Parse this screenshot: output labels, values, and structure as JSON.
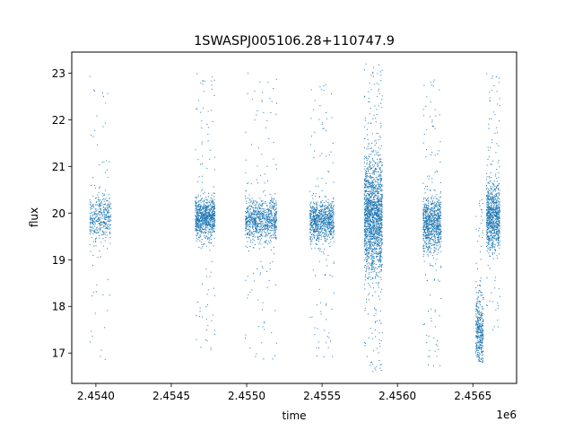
{
  "chart_data": {
    "type": "scatter",
    "title": "1SWASPJ005106.28+110747.9",
    "xlabel": "time",
    "ylabel": "flux",
    "x_offset_label": "1e6",
    "xlim": [
      2453840,
      2456790
    ],
    "ylim": [
      16.35,
      23.45
    ],
    "xticks": [
      2454000,
      2454500,
      2455000,
      2455500,
      2456000,
      2456500
    ],
    "xtick_labels": [
      "2.4540",
      "2.4545",
      "2.4550",
      "2.4555",
      "2.4560",
      "2.4565"
    ],
    "yticks": [
      17,
      18,
      19,
      20,
      21,
      22,
      23
    ],
    "ytick_labels": [
      "17",
      "18",
      "19",
      "20",
      "21",
      "22",
      "23"
    ],
    "grid": false,
    "marker_color": "#1f77b4",
    "observing_seasons": [
      {
        "time_range": [
          2453960,
          2454100
        ],
        "flux_center": 19.9,
        "core_spread": 0.25,
        "flux_range": [
          16.7,
          23.05
        ],
        "density": "medium"
      },
      {
        "time_range": [
          2454660,
          2454790
        ],
        "flux_center": 19.9,
        "core_spread": 0.22,
        "flux_range": [
          17.0,
          23.0
        ],
        "density": "dense"
      },
      {
        "time_range": [
          2454990,
          2455200
        ],
        "flux_center": 19.85,
        "core_spread": 0.22,
        "flux_range": [
          16.8,
          23.0
        ],
        "density": "dense"
      },
      {
        "time_range": [
          2455420,
          2455580
        ],
        "flux_center": 19.85,
        "core_spread": 0.22,
        "flux_range": [
          16.8,
          22.8
        ],
        "density": "dense"
      },
      {
        "time_range": [
          2455780,
          2455900
        ],
        "flux_center": 19.9,
        "core_spread": 0.6,
        "flux_range": [
          16.6,
          23.2
        ],
        "density": "very dense"
      },
      {
        "time_range": [
          2456170,
          2456290
        ],
        "flux_center": 19.8,
        "core_spread": 0.3,
        "flux_range": [
          16.6,
          22.9
        ],
        "density": "dense"
      },
      {
        "time_range": [
          2456520,
          2456570
        ],
        "flux_center": 17.4,
        "core_spread": 0.4,
        "flux_range": [
          16.8,
          20.3
        ],
        "density": "medium"
      },
      {
        "time_range": [
          2456590,
          2456680
        ],
        "flux_center": 19.9,
        "core_spread": 0.35,
        "flux_range": [
          17.5,
          23.1
        ],
        "density": "dense"
      }
    ]
  }
}
